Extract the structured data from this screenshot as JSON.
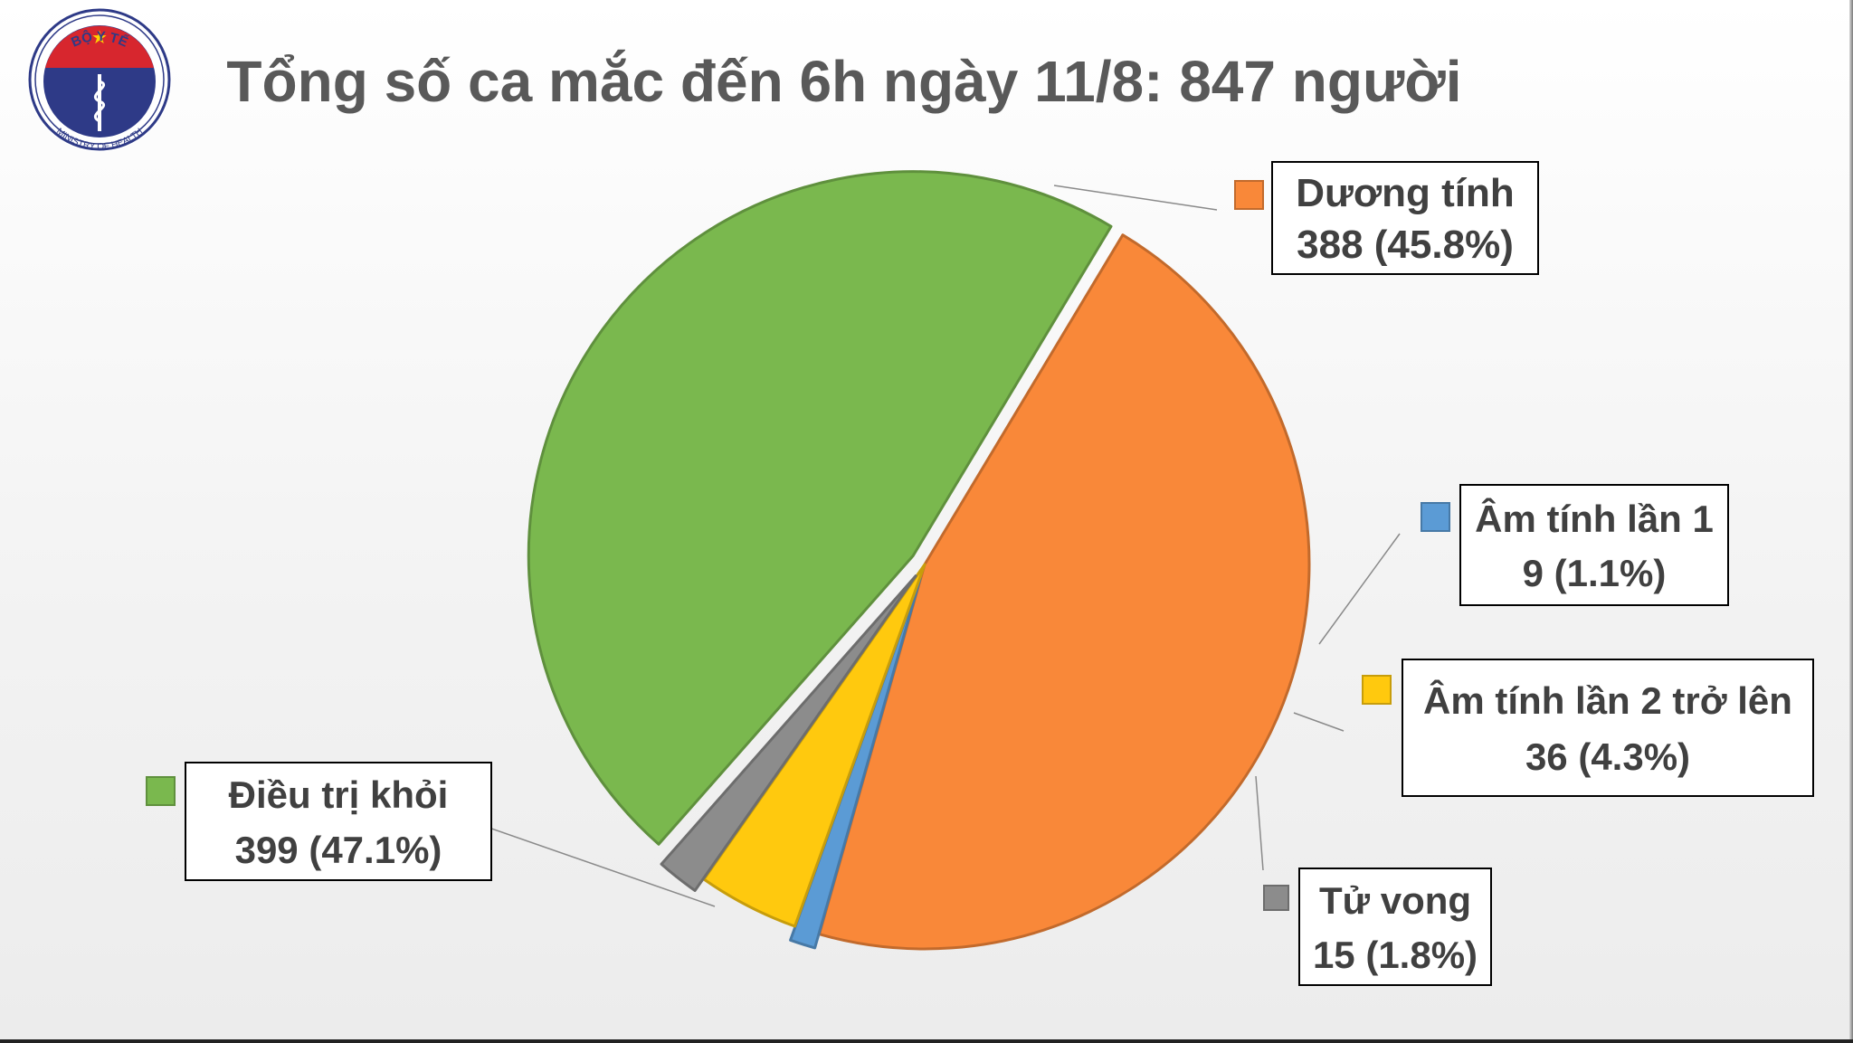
{
  "chart_data": {
    "type": "pie",
    "title": "Tổng số ca mắc đến 6h ngày 11/8: 847 người",
    "total": 847,
    "start_angle_deg": -59.0,
    "slices": [
      {
        "name": "Dương tính",
        "value": 388,
        "percent_label": "388 (45.8%)",
        "color": "#F98839",
        "exploded": false
      },
      {
        "name": "Âm tính lần 1",
        "value": 9,
        "percent_label": "9 (1.1%)",
        "color": "#5B9BD5",
        "exploded": true
      },
      {
        "name": "Âm tính lần 2 trở lên",
        "value": 36,
        "percent_label": "36 (4.3%)",
        "color": "#FFC90E",
        "exploded": false
      },
      {
        "name": "Tử vong",
        "value": 15,
        "percent_label": "15 (1.8%)",
        "color": "#8C8C8C",
        "exploded": true
      },
      {
        "name": "Điều trị khỏi",
        "value": 399,
        "percent_label": "399 (47.1%)",
        "color": "#7AB84E",
        "exploded": true
      }
    ]
  },
  "logo": {
    "text_top": "BỘ Y TẾ",
    "text_bottom": "MINISTRY OF HEALTH",
    "colors": {
      "ring": "#2E3A87",
      "red": "#D7262E",
      "blue": "#2E3A87",
      "star": "#FFD200"
    }
  },
  "colors": {
    "title": "#595959",
    "label_text": "#404040",
    "leader": "#8a8a8a"
  }
}
